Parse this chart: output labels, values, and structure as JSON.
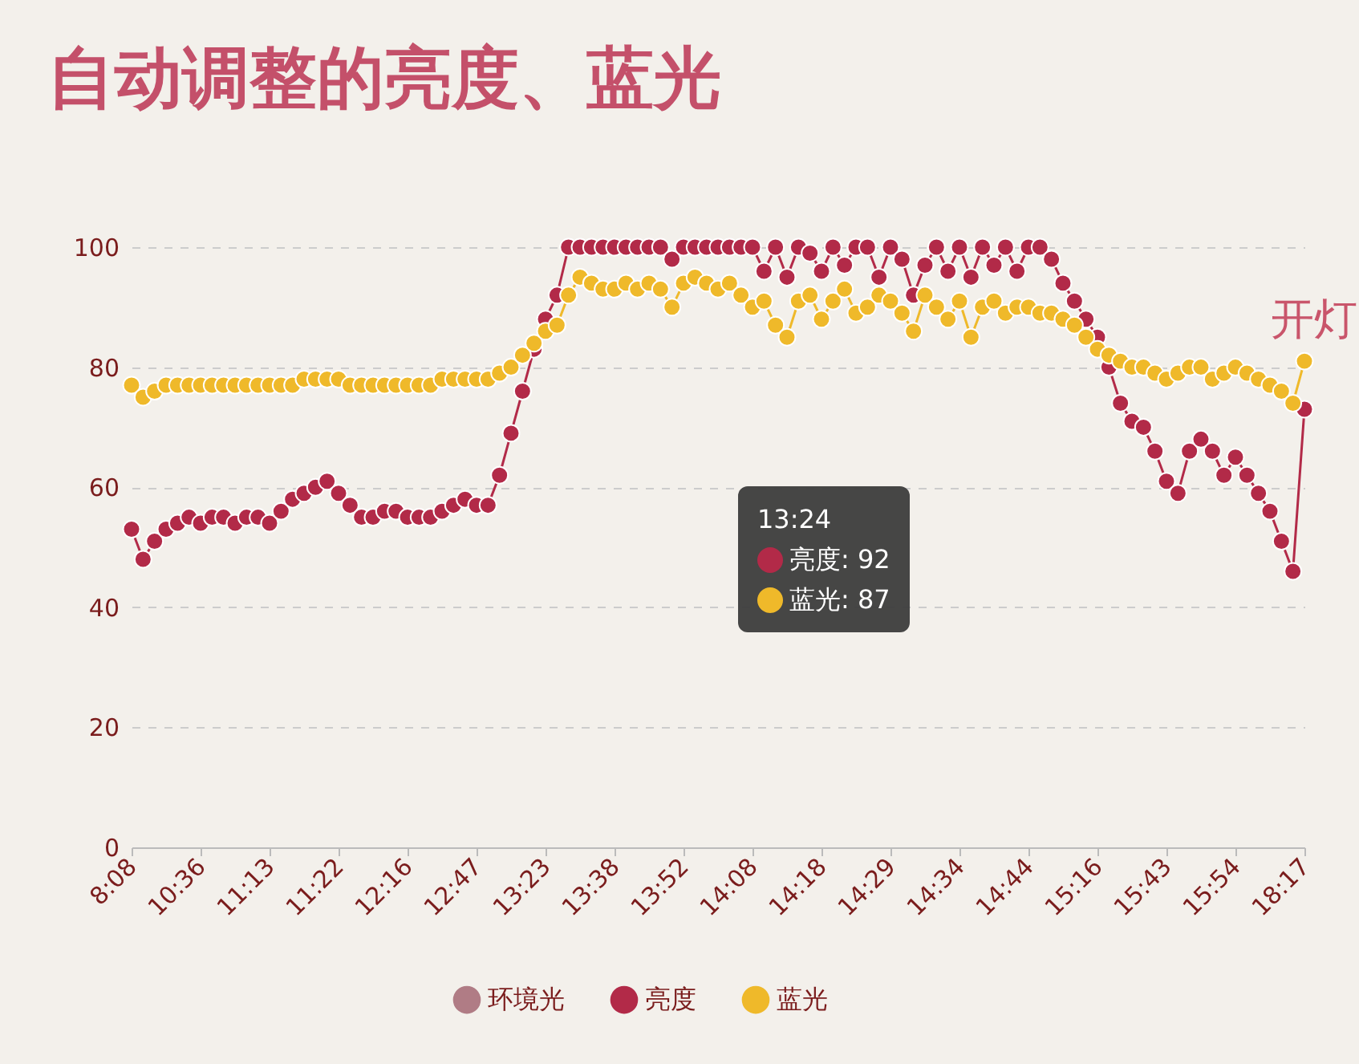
{
  "chart_data": {
    "type": "line",
    "title": "自动调整的亮度、蓝光",
    "categories": [
      "8:08",
      null,
      null,
      null,
      null,
      null,
      "10:36",
      null,
      null,
      null,
      null,
      null,
      "11:13",
      null,
      null,
      null,
      null,
      null,
      "11:22",
      null,
      null,
      null,
      null,
      null,
      "12:16",
      null,
      null,
      null,
      null,
      null,
      "12:47",
      null,
      null,
      null,
      null,
      null,
      "13:23",
      null,
      null,
      null,
      null,
      null,
      "13:38",
      null,
      null,
      null,
      null,
      null,
      "13:52",
      null,
      null,
      null,
      null,
      null,
      "14:08",
      null,
      null,
      null,
      null,
      null,
      "14:18",
      null,
      null,
      null,
      null,
      null,
      "14:29",
      null,
      null,
      null,
      null,
      null,
      "14:34",
      null,
      null,
      null,
      null,
      null,
      "14:44",
      null,
      null,
      null,
      null,
      null,
      "15:16",
      null,
      null,
      null,
      null,
      null,
      "15:43",
      null,
      null,
      null,
      null,
      null,
      "15:54",
      null,
      null,
      null,
      null,
      null,
      "18:17"
    ],
    "series": [
      {
        "name": "环境光",
        "color": "#b07c85",
        "values": [
          null,
          null,
          null,
          null,
          null,
          null,
          null,
          null,
          null,
          null,
          null,
          null,
          null,
          null,
          null,
          null,
          null,
          null,
          null,
          null,
          null,
          null,
          null,
          null,
          null,
          null,
          null,
          null,
          null,
          null,
          null,
          null,
          null,
          null,
          null,
          null,
          null,
          null,
          null,
          null,
          null,
          null,
          null,
          null,
          null,
          null,
          null,
          null,
          null,
          null,
          null,
          null,
          null,
          null,
          null,
          null,
          null,
          null,
          null,
          null,
          null,
          null,
          null,
          null,
          null,
          null,
          null,
          null,
          null,
          null,
          null,
          null,
          null,
          null,
          null,
          null,
          null,
          null,
          null,
          null,
          null,
          null,
          null,
          null,
          null,
          null,
          null,
          null,
          null,
          null,
          null,
          null,
          null,
          null,
          null,
          null,
          null,
          null,
          null,
          null,
          null,
          null,
          null
        ]
      },
      {
        "name": "亮度",
        "color": "#b22a48",
        "values": [
          53,
          48,
          51,
          53,
          54,
          55,
          54,
          55,
          55,
          54,
          55,
          55,
          54,
          56,
          58,
          59,
          60,
          61,
          59,
          57,
          55,
          55,
          56,
          56,
          55,
          55,
          55,
          56,
          57,
          58,
          57,
          57,
          62,
          69,
          76,
          83,
          88,
          92,
          100,
          100,
          100,
          100,
          100,
          100,
          100,
          100,
          100,
          98,
          100,
          100,
          100,
          100,
          100,
          100,
          100,
          96,
          100,
          95,
          100,
          99,
          96,
          100,
          97,
          100,
          100,
          95,
          100,
          98,
          92,
          97,
          100,
          96,
          100,
          95,
          100,
          97,
          100,
          96,
          100,
          100,
          98,
          94,
          91,
          88,
          85,
          80,
          74,
          71,
          70,
          66,
          61,
          59,
          66,
          68,
          66,
          62,
          65,
          62,
          59,
          56,
          51,
          46,
          73
        ]
      },
      {
        "name": "蓝光",
        "color": "#efb92a",
        "values": [
          77,
          75,
          76,
          77,
          77,
          77,
          77,
          77,
          77,
          77,
          77,
          77,
          77,
          77,
          77,
          78,
          78,
          78,
          78,
          77,
          77,
          77,
          77,
          77,
          77,
          77,
          77,
          78,
          78,
          78,
          78,
          78,
          79,
          80,
          82,
          84,
          86,
          87,
          92,
          95,
          94,
          93,
          93,
          94,
          93,
          94,
          93,
          90,
          94,
          95,
          94,
          93,
          94,
          92,
          90,
          91,
          87,
          85,
          91,
          92,
          88,
          91,
          93,
          89,
          90,
          92,
          91,
          89,
          86,
          92,
          90,
          88,
          91,
          85,
          90,
          91,
          89,
          90,
          90,
          89,
          89,
          88,
          87,
          85,
          83,
          82,
          81,
          80,
          80,
          79,
          78,
          79,
          80,
          80,
          78,
          79,
          80,
          79,
          78,
          77,
          76,
          74,
          81
        ]
      }
    ],
    "ylim": [
      0,
      100
    ],
    "yticks": [
      0,
      20,
      40,
      60,
      80,
      100
    ],
    "grid": "y",
    "legend": "bottom",
    "marker": "circle",
    "annotations": [
      "开灯",
      "13:24",
      "亮度: 92",
      "蓝光: 87"
    ]
  }
}
